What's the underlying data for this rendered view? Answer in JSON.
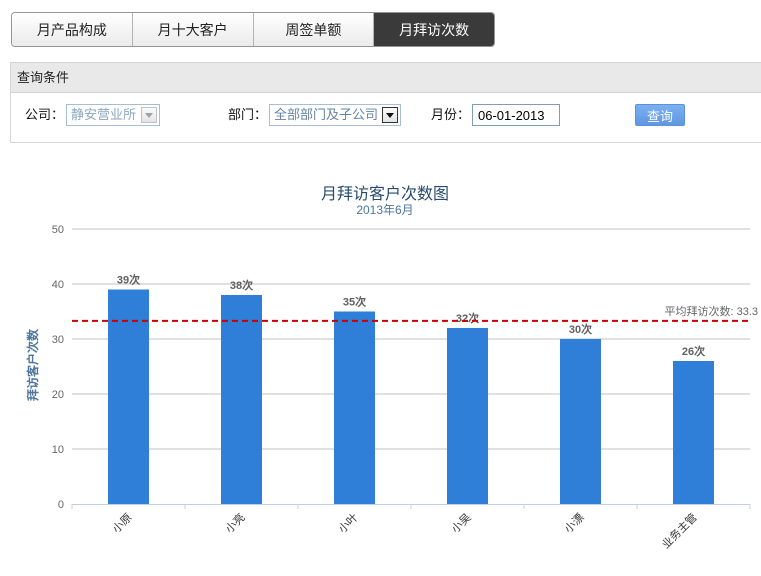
{
  "tabs": [
    {
      "label": "月产品构成",
      "active": false
    },
    {
      "label": "月十大客户",
      "active": false
    },
    {
      "label": "周签单额",
      "active": false
    },
    {
      "label": "月拜访次数",
      "active": true
    }
  ],
  "query": {
    "header": "查询条件",
    "company_label": "公司：",
    "company_value": "静安营业所",
    "dept_label": "部门：",
    "dept_value": "全部部门及子公司",
    "month_label": "月份：",
    "month_value": "06-01-2013",
    "submit_label": "查询"
  },
  "chart_data": {
    "type": "bar",
    "title": "月拜访客户次数图",
    "subtitle": "2013年6月",
    "xlabel": "",
    "ylabel": "拜访客户次数",
    "categories": [
      "小原",
      "小亮",
      "小叶",
      "小吴",
      "小漂",
      "业务主管"
    ],
    "values": [
      39,
      38,
      35,
      32,
      30,
      26
    ],
    "data_labels": [
      "39次",
      "38次",
      "35次",
      "32次",
      "30次",
      "26次"
    ],
    "ylim": [
      0,
      50
    ],
    "yticks": [
      0,
      10,
      20,
      30,
      40,
      50
    ],
    "grid": true,
    "plot_lines": [
      {
        "value": 33.3,
        "label": "平均拜访次数: 33.3",
        "color": "#cc0000"
      }
    ],
    "colors": {
      "bar": "#2f7ed8",
      "title": "#274b6d",
      "subtitle": "#4d759e"
    }
  }
}
